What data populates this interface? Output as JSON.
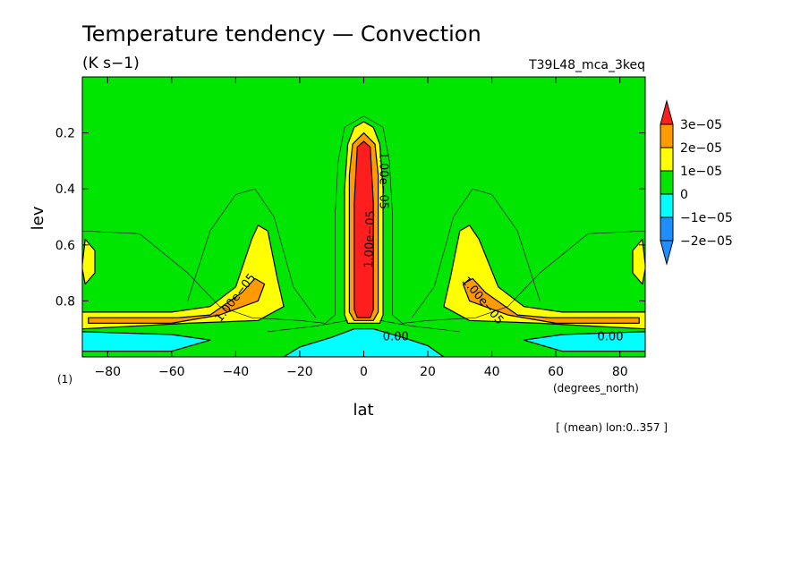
{
  "colors": {
    "below_m2": "#1f8fff",
    "m2_m1": "#1f8fff",
    "m1_0": "#00ffff",
    "zero_1": "#00e600",
    "one_2": "#ffff00",
    "two_3": "#ff9a00",
    "above_3": "#ff1e1e"
  },
  "chart_data": {
    "type": "heatmap",
    "title": "Temperature tendency — Convection",
    "units": "(K s−1)",
    "experiment": "T39L48_mca_3keq",
    "xlabel": "lat",
    "x_units": "(degrees_north)",
    "ylabel": "lev",
    "y_units": "(1)",
    "averaging_note": "[ (mean) lon:0..357 ]",
    "xlim": [
      -87.9,
      87.9
    ],
    "ylim": [
      1.0,
      0.0
    ],
    "x_ticks": [
      -80,
      -60,
      -40,
      -20,
      0,
      20,
      40,
      60,
      80
    ],
    "x_tick_labels": [
      "−80",
      "−60",
      "−40",
      "−20",
      "0",
      "20",
      "40",
      "60",
      "80"
    ],
    "y_ticks": [
      0.2,
      0.4,
      0.6,
      0.8
    ],
    "y_tick_labels": [
      "0.2",
      "0.4",
      "0.6",
      "0.8"
    ],
    "colorbar": {
      "levels": [
        -2e-05,
        -1e-05,
        0,
        1e-05,
        2e-05,
        3e-05
      ],
      "labels": [
        "−2e−05",
        "−1e−05",
        "0",
        "1e−05",
        "2e−05",
        "3e−05"
      ]
    },
    "contour_labels": [
      {
        "text": "1.00e−05",
        "lat": -40,
        "lev": 0.79,
        "angle": -52
      },
      {
        "text": "1.00e−05",
        "lat": 37,
        "lev": 0.8,
        "angle": 50
      },
      {
        "text": "1.00e−05",
        "lat": 6,
        "lev": 0.37,
        "angle": 90
      },
      {
        "text": "1.00e−05",
        "lat": 2,
        "lev": 0.58,
        "angle": -88
      },
      {
        "text": "0.00",
        "lat": 10,
        "lev": 0.93,
        "angle": 0
      },
      {
        "text": "0.00",
        "lat": 77,
        "lev": 0.93,
        "angle": 0
      }
    ],
    "regions": [
      {
        "value": "zero_1",
        "polygon": [
          [
            -88,
            0
          ],
          [
            88,
            0
          ],
          [
            88,
            1
          ],
          [
            -88,
            1
          ]
        ]
      },
      {
        "value": "m1_0",
        "polygon": [
          [
            -88,
            0.91
          ],
          [
            -60,
            0.92
          ],
          [
            -48,
            0.94
          ],
          [
            -60,
            0.98
          ],
          [
            -88,
            0.98
          ]
        ]
      },
      {
        "value": "m1_0",
        "polygon": [
          [
            -20,
            0.965
          ],
          [
            -10,
            0.93
          ],
          [
            -3,
            0.9
          ],
          [
            3,
            0.9
          ],
          [
            12,
            0.93
          ],
          [
            20,
            0.96
          ],
          [
            25,
            1
          ],
          [
            -25,
            1
          ]
        ]
      },
      {
        "value": "m1_0",
        "polygon": [
          [
            88,
            0.91
          ],
          [
            62,
            0.92
          ],
          [
            50,
            0.94
          ],
          [
            62,
            0.98
          ],
          [
            88,
            0.98
          ]
        ]
      },
      {
        "value": "one_2",
        "polygon": [
          [
            -88,
            0.84
          ],
          [
            -60,
            0.84
          ],
          [
            -48,
            0.82
          ],
          [
            -40,
            0.75
          ],
          [
            -35,
            0.58
          ],
          [
            -33,
            0.53
          ],
          [
            -30,
            0.55
          ],
          [
            -27,
            0.72
          ],
          [
            -25,
            0.82
          ],
          [
            -33,
            0.87
          ],
          [
            -55,
            0.88
          ],
          [
            -88,
            0.9
          ]
        ]
      },
      {
        "value": "one_2",
        "polygon": [
          [
            88,
            0.84
          ],
          [
            62,
            0.84
          ],
          [
            50,
            0.82
          ],
          [
            42,
            0.75
          ],
          [
            36,
            0.58
          ],
          [
            33,
            0.53
          ],
          [
            30,
            0.55
          ],
          [
            27,
            0.72
          ],
          [
            25,
            0.82
          ],
          [
            33,
            0.87
          ],
          [
            55,
            0.88
          ],
          [
            88,
            0.9
          ]
        ]
      },
      {
        "value": "one_2",
        "polygon": [
          [
            -6,
            0.85
          ],
          [
            -6,
            0.4
          ],
          [
            -5,
            0.24
          ],
          [
            -3,
            0.18
          ],
          [
            0,
            0.16
          ],
          [
            3,
            0.18
          ],
          [
            5,
            0.24
          ],
          [
            6,
            0.4
          ],
          [
            6,
            0.85
          ],
          [
            5,
            0.88
          ],
          [
            -5,
            0.88
          ]
        ]
      },
      {
        "value": "one_2",
        "polygon": [
          [
            -87,
            0.58
          ],
          [
            -84,
            0.62
          ],
          [
            -84,
            0.7
          ],
          [
            -87,
            0.74
          ],
          [
            -88,
            0.68
          ]
        ]
      },
      {
        "value": "one_2",
        "polygon": [
          [
            87,
            0.58
          ],
          [
            84,
            0.62
          ],
          [
            84,
            0.7
          ],
          [
            87,
            0.74
          ],
          [
            88,
            0.68
          ]
        ]
      },
      {
        "value": "two_3",
        "polygon": [
          [
            -86,
            0.86
          ],
          [
            -58,
            0.86
          ],
          [
            -48,
            0.85
          ],
          [
            -38,
            0.77
          ],
          [
            -34,
            0.72
          ],
          [
            -31,
            0.74
          ],
          [
            -33,
            0.8
          ],
          [
            -45,
            0.85
          ],
          [
            -60,
            0.88
          ],
          [
            -86,
            0.88
          ]
        ]
      },
      {
        "value": "two_3",
        "polygon": [
          [
            86,
            0.86
          ],
          [
            58,
            0.86
          ],
          [
            48,
            0.85
          ],
          [
            38,
            0.77
          ],
          [
            34,
            0.72
          ],
          [
            31,
            0.74
          ],
          [
            33,
            0.8
          ],
          [
            45,
            0.85
          ],
          [
            60,
            0.88
          ],
          [
            86,
            0.88
          ]
        ]
      },
      {
        "value": "two_3",
        "polygon": [
          [
            -4.5,
            0.84
          ],
          [
            -4.5,
            0.35
          ],
          [
            -3.5,
            0.24
          ],
          [
            0,
            0.2
          ],
          [
            3.5,
            0.24
          ],
          [
            4.5,
            0.35
          ],
          [
            4.5,
            0.84
          ],
          [
            3,
            0.87
          ],
          [
            -3,
            0.87
          ]
        ]
      },
      {
        "value": "above_3",
        "polygon": [
          [
            -3,
            0.83
          ],
          [
            -3,
            0.45
          ],
          [
            -2,
            0.25
          ],
          [
            0,
            0.23
          ],
          [
            2,
            0.25
          ],
          [
            3,
            0.45
          ],
          [
            3,
            0.83
          ],
          [
            2,
            0.86
          ],
          [
            -2,
            0.86
          ]
        ]
      }
    ],
    "contour_lines": [
      {
        "weight": "thin",
        "points": [
          [
            -88,
            0.55
          ],
          [
            -70,
            0.56
          ],
          [
            -55,
            0.7
          ],
          [
            -45,
            0.82
          ],
          [
            -35,
            0.86
          ],
          [
            -20,
            0.87
          ],
          [
            -12,
            0.88
          ],
          [
            -9,
            0.85
          ],
          [
            -9,
            0.5
          ],
          [
            -8,
            0.3
          ],
          [
            -6,
            0.18
          ],
          [
            0,
            0.14
          ],
          [
            6,
            0.18
          ],
          [
            8,
            0.3
          ],
          [
            9,
            0.5
          ],
          [
            9,
            0.85
          ],
          [
            12,
            0.88
          ],
          [
            20,
            0.87
          ],
          [
            35,
            0.86
          ],
          [
            45,
            0.82
          ],
          [
            55,
            0.7
          ],
          [
            70,
            0.56
          ],
          [
            88,
            0.55
          ]
        ]
      },
      {
        "weight": "thin",
        "points": [
          [
            -55,
            0.8
          ],
          [
            -48,
            0.55
          ],
          [
            -40,
            0.42
          ],
          [
            -34,
            0.4
          ],
          [
            -28,
            0.5
          ],
          [
            -22,
            0.75
          ],
          [
            -15,
            0.86
          ]
        ]
      },
      {
        "weight": "thin",
        "points": [
          [
            55,
            0.8
          ],
          [
            48,
            0.55
          ],
          [
            40,
            0.42
          ],
          [
            34,
            0.4
          ],
          [
            28,
            0.5
          ],
          [
            22,
            0.75
          ],
          [
            15,
            0.86
          ]
        ]
      },
      {
        "weight": "thin",
        "points": [
          [
            -30,
            0.91
          ],
          [
            -15,
            0.89
          ],
          [
            -5,
            0.87
          ]
        ]
      },
      {
        "weight": "thin",
        "points": [
          [
            30,
            0.91
          ],
          [
            15,
            0.89
          ],
          [
            5,
            0.87
          ]
        ]
      }
    ]
  }
}
